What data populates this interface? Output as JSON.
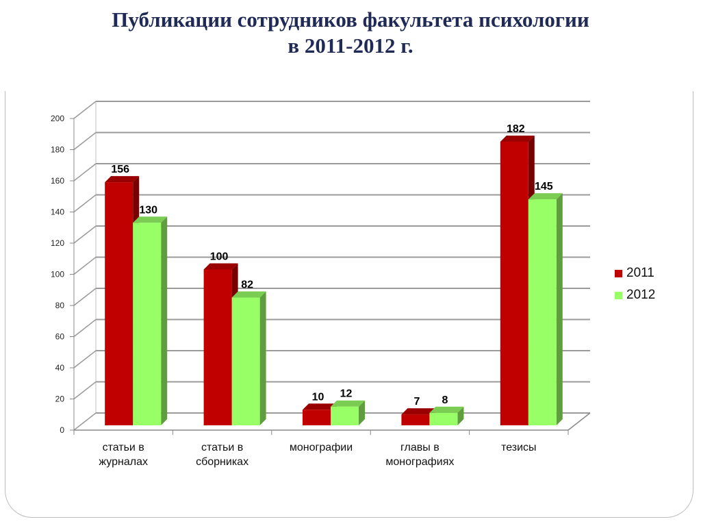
{
  "title": {
    "line1": "Публикации сотрудников факультета психологии",
    "line2": "в 2011-2012 г."
  },
  "chart_data": {
    "type": "bar",
    "categories": [
      [
        "статьи в",
        "журналах"
      ],
      [
        "статьи в",
        "сборниках"
      ],
      [
        "монографии"
      ],
      [
        "главы в",
        "монографиях"
      ],
      [
        "тезисы"
      ]
    ],
    "series": [
      {
        "name": "2011",
        "values": [
          156,
          100,
          10,
          7,
          182
        ],
        "color": "#c00000"
      },
      {
        "name": "2012",
        "values": [
          130,
          82,
          12,
          8,
          145
        ],
        "color": "#99ff66"
      }
    ],
    "ylim": [
      0,
      200
    ],
    "yticks": [
      0,
      20,
      40,
      60,
      80,
      100,
      120,
      140,
      160,
      180,
      200
    ],
    "grid": true,
    "legend": "right",
    "data_labels": true,
    "three_d": true
  }
}
